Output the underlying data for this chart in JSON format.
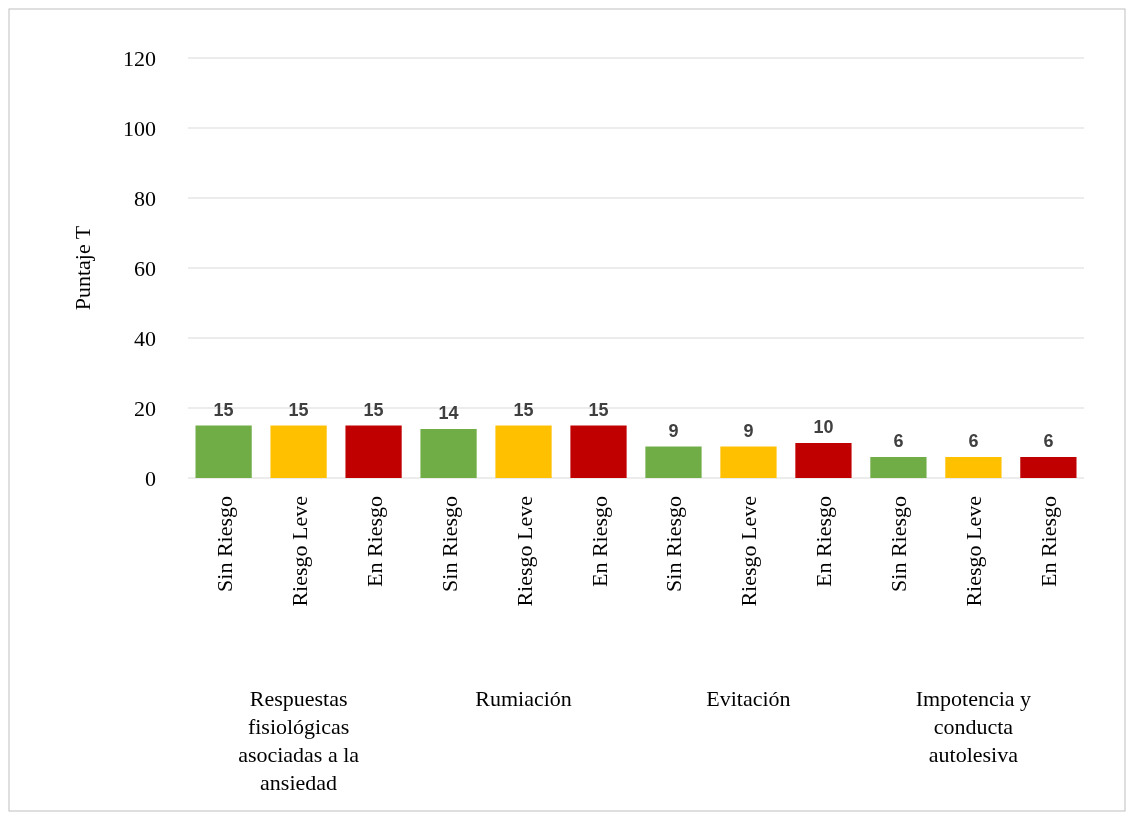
{
  "chart_data": {
    "type": "bar",
    "ylabel": "Puntaje T",
    "categories": [
      "Sin Riesgo",
      "Riesgo Leve",
      "En Riesgo",
      "Sin Riesgo",
      "Riesgo Leve",
      "En Riesgo",
      "Sin Riesgo",
      "Riesgo Leve",
      "En Riesgo",
      "Sin Riesgo",
      "Riesgo Leve",
      "En Riesgo"
    ],
    "values": [
      15,
      15,
      15,
      14,
      15,
      15,
      9,
      9,
      10,
      6,
      6,
      6
    ],
    "colors": [
      "#70ad47",
      "#ffc000",
      "#c00000",
      "#70ad47",
      "#ffc000",
      "#c00000",
      "#70ad47",
      "#ffc000",
      "#c00000",
      "#70ad47",
      "#ffc000",
      "#c00000"
    ],
    "ylim": [
      0,
      120
    ],
    "yticks": [
      0,
      20,
      40,
      60,
      80,
      100,
      120
    ],
    "grid": "y",
    "data_labels": true,
    "annotations": [
      "Respuestas fisiológicas asociadas a la ansiedad",
      "Rumiación",
      "Evitación",
      "Impotencia y conducta autolesiva"
    ]
  }
}
